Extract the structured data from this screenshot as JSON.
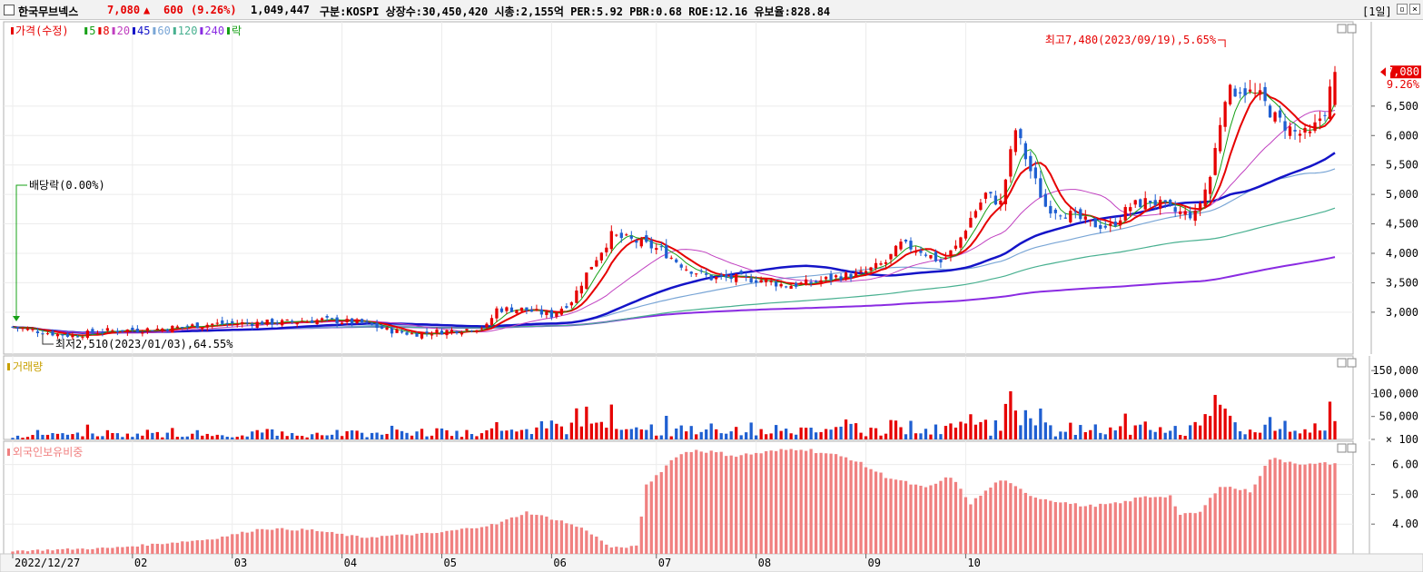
{
  "header": {
    "name": "한국무브넥스",
    "price": "7,080",
    "change_arrow": "▲",
    "change": "600",
    "change_pct": "(9.26%)",
    "volume": "1,049,447",
    "info": "구분:KOSPI 상장수:30,450,420 시총:2,155억 PER:5.92 PBR:0.68 ROE:12.16 유보율:828.84",
    "period": "[1일]"
  },
  "colors": {
    "up": "#e60000",
    "down": "#1f5fd1",
    "ma5": "#16a016",
    "ma8": "#e60000",
    "ma20": "#c040c0",
    "ma45": "#1414c8",
    "ma60": "#7aa6d6",
    "ma120": "#48b090",
    "ma240": "#8a2be2",
    "foreign": "#f08080"
  },
  "chart_data": [
    {
      "type": "candlestick",
      "panel": "price",
      "legend": [
        {
          "label": "가격(수정)",
          "color": "#e60000"
        },
        {
          "label": "5",
          "color": "#16a016"
        },
        {
          "label": "8",
          "color": "#e60000"
        },
        {
          "label": "20",
          "color": "#c040c0"
        },
        {
          "label": "45",
          "color": "#1414c8"
        },
        {
          "label": "60",
          "color": "#7aa6d6"
        },
        {
          "label": "120",
          "color": "#48b090"
        },
        {
          "label": "240",
          "color": "#8a2be2"
        },
        {
          "label": "락",
          "color": "#16a016"
        }
      ],
      "yticks": [
        3000,
        3500,
        4000,
        4500,
        5000,
        5500,
        6000,
        6500
      ],
      "ylabels": [
        "3,000",
        "3,500",
        "4,000",
        "4,500",
        "5,000",
        "5,500",
        "6,000",
        "6,500"
      ],
      "ylim": [
        2350,
        7870
      ],
      "current_price_label": "7,080",
      "current_pct_label": "9.26%",
      "annotations": {
        "high": "최고7,480(2023/09/19),5.65%",
        "low": "최저2,510(2023/01/03),64.55%",
        "dividend": "배당락(0.00%)"
      },
      "waypoints": [
        [
          0,
          2750
        ],
        [
          7,
          2650
        ],
        [
          12,
          2600
        ],
        [
          18,
          2680
        ],
        [
          30,
          2720
        ],
        [
          40,
          2800
        ],
        [
          55,
          2830
        ],
        [
          62,
          2870
        ],
        [
          70,
          2820
        ],
        [
          75,
          2700
        ],
        [
          80,
          2630
        ],
        [
          90,
          2700
        ],
        [
          95,
          2760
        ],
        [
          97,
          3050
        ],
        [
          102,
          3050
        ],
        [
          108,
          2950
        ],
        [
          112,
          3200
        ],
        [
          116,
          3800
        ],
        [
          120,
          4300
        ],
        [
          125,
          4200
        ],
        [
          130,
          4050
        ],
        [
          135,
          3750
        ],
        [
          140,
          3580
        ],
        [
          145,
          3580
        ],
        [
          150,
          3550
        ],
        [
          155,
          3450
        ],
        [
          160,
          3500
        ],
        [
          165,
          3600
        ],
        [
          170,
          3650
        ],
        [
          175,
          3850
        ],
        [
          178,
          4150
        ],
        [
          182,
          4050
        ],
        [
          186,
          3850
        ],
        [
          189,
          4100
        ],
        [
          192,
          4600
        ],
        [
          195,
          5000
        ],
        [
          198,
          4850
        ],
        [
          201,
          6100
        ],
        [
          204,
          5400
        ],
        [
          207,
          4800
        ],
        [
          212,
          4650
        ],
        [
          216,
          4500
        ],
        [
          220,
          4450
        ],
        [
          224,
          4800
        ],
        [
          228,
          4900
        ],
        [
          233,
          4700
        ],
        [
          237,
          4650
        ],
        [
          240,
          5300
        ],
        [
          243,
          6700
        ],
        [
          246,
          6800
        ],
        [
          250,
          6650
        ],
        [
          253,
          6300
        ],
        [
          257,
          6050
        ],
        [
          260,
          6000
        ],
        [
          263,
          6450
        ],
        [
          265,
          7080
        ]
      ],
      "total_days": 266
    },
    {
      "type": "bar",
      "panel": "volume",
      "title": "거래량",
      "yticks": [
        100,
        50000,
        100000,
        150000
      ],
      "ylabels": [
        "× 100",
        "50,000",
        "100,000",
        "150,000"
      ],
      "ylim": [
        0,
        170000
      ]
    },
    {
      "type": "bar",
      "panel": "foreign",
      "title": "외국인보유비중",
      "yticks": [
        4.0,
        5.0,
        6.0
      ],
      "ylabels": [
        "4.00",
        "5.00",
        "6.00"
      ],
      "ylim": [
        3.0,
        6.6
      ],
      "waypoints": [
        [
          0,
          3.1
        ],
        [
          20,
          3.2
        ],
        [
          40,
          3.5
        ],
        [
          50,
          3.85
        ],
        [
          60,
          3.8
        ],
        [
          70,
          3.55
        ],
        [
          85,
          3.7
        ],
        [
          97,
          4.0
        ],
        [
          103,
          4.4
        ],
        [
          110,
          4.1
        ],
        [
          115,
          3.8
        ],
        [
          120,
          3.2
        ],
        [
          125,
          3.25
        ],
        [
          127,
          5.3
        ],
        [
          133,
          6.3
        ],
        [
          137,
          6.5
        ],
        [
          145,
          6.3
        ],
        [
          158,
          6.55
        ],
        [
          168,
          6.2
        ],
        [
          175,
          5.6
        ],
        [
          183,
          5.2
        ],
        [
          188,
          5.6
        ],
        [
          192,
          4.7
        ],
        [
          198,
          5.5
        ],
        [
          205,
          4.9
        ],
        [
          215,
          4.6
        ],
        [
          222,
          4.7
        ],
        [
          226,
          4.9
        ],
        [
          232,
          4.95
        ],
        [
          234,
          4.3
        ],
        [
          238,
          4.4
        ],
        [
          242,
          5.3
        ],
        [
          248,
          5.1
        ],
        [
          252,
          6.2
        ],
        [
          260,
          6.0
        ],
        [
          265,
          6.05
        ]
      ]
    }
  ],
  "xaxis": {
    "labels": [
      "2022/12/27",
      "02",
      "03",
      "04",
      "05",
      "06",
      "07",
      "08",
      "09",
      "10"
    ],
    "positions": [
      0,
      24,
      44,
      66,
      86,
      108,
      129,
      149,
      171,
      191
    ]
  }
}
